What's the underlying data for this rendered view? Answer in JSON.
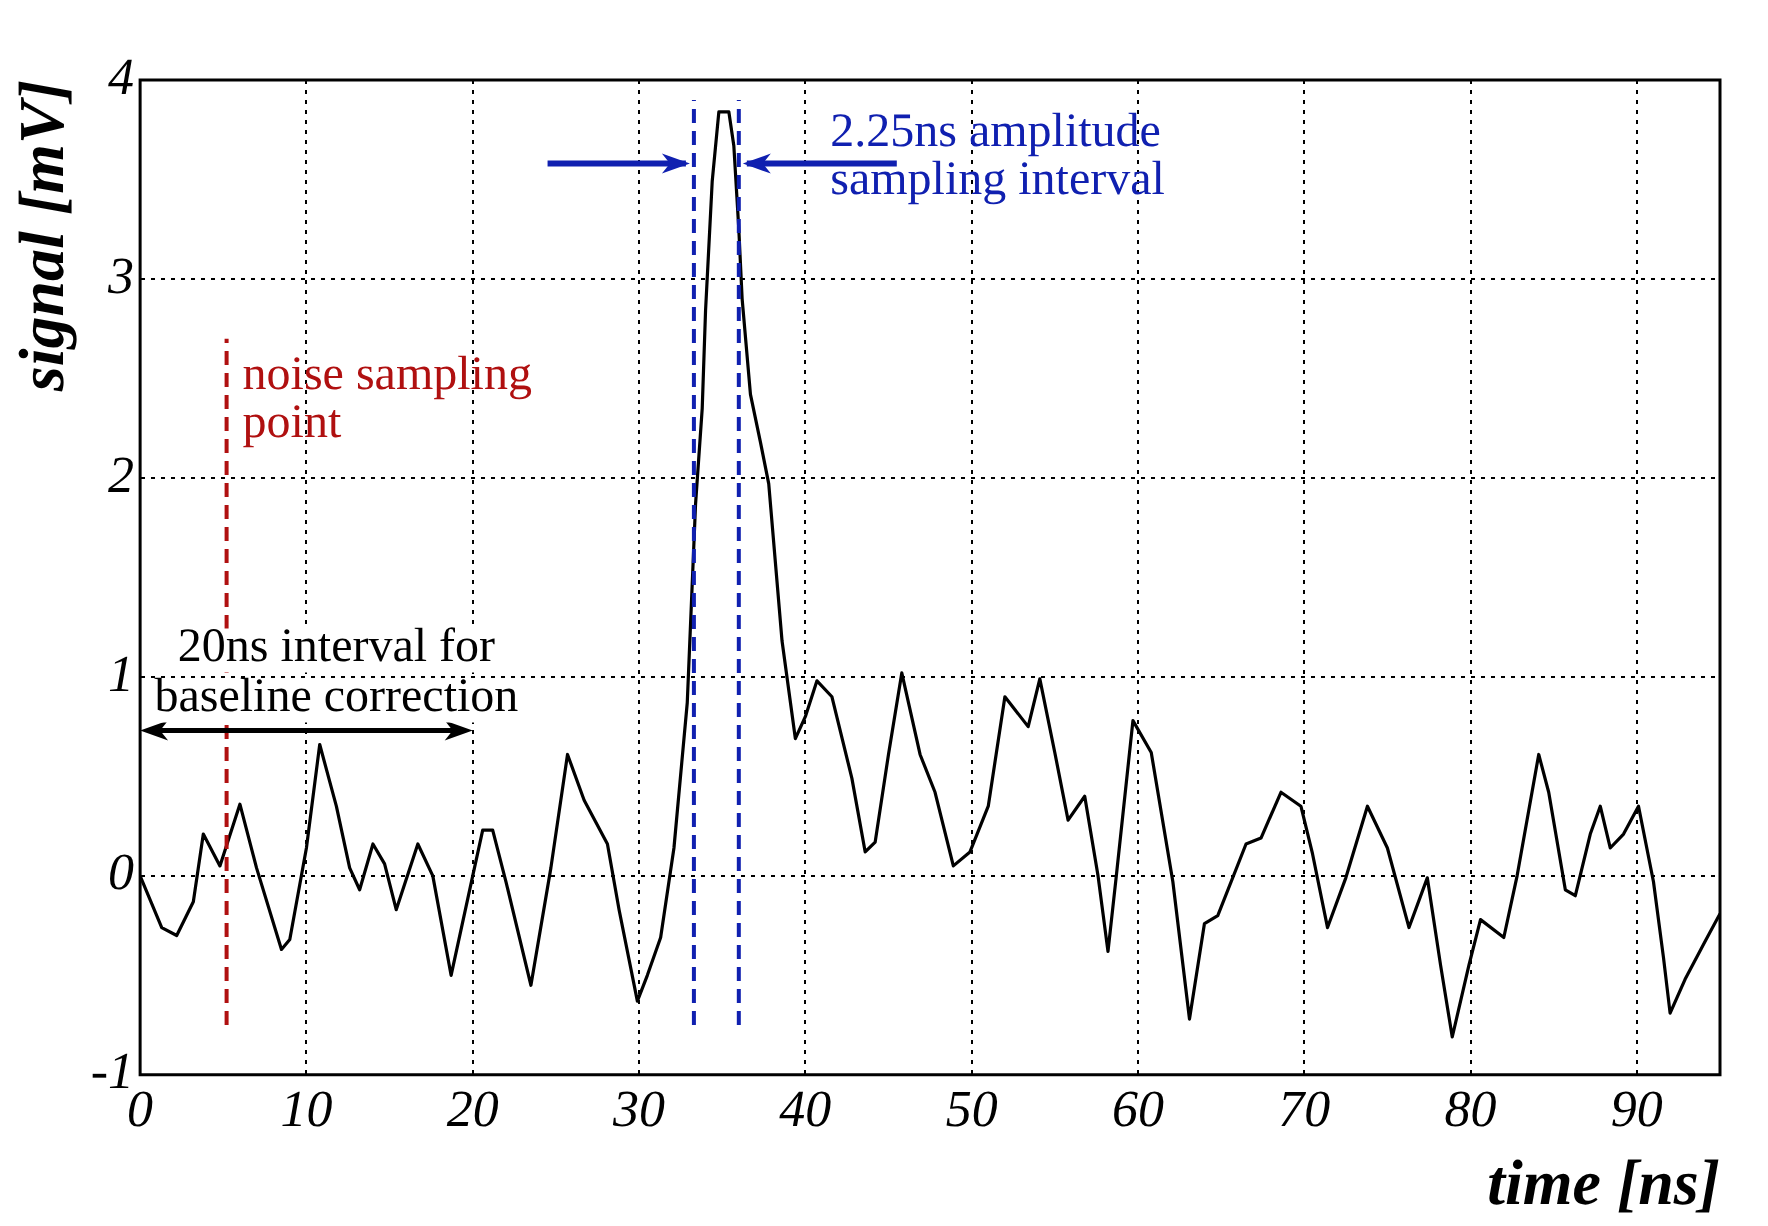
{
  "chart_data": {
    "type": "line",
    "xlabel": "time [ns]",
    "ylabel": "signal [mV]",
    "xlim": [
      0,
      95
    ],
    "xticks": [
      0,
      10,
      20,
      30,
      40,
      50,
      60,
      70,
      80,
      90
    ],
    "ylim": [
      -1,
      4
    ],
    "yticks": [
      -1,
      0,
      1,
      2,
      3,
      4
    ],
    "grid": true,
    "legend": false,
    "marker": "none",
    "line_style": "solid",
    "series": [
      {
        "color": "#000000",
        "x": [
          0,
          1.3,
          2.2,
          3.2,
          3.8,
          4.8,
          6.0,
          7.0,
          8.5,
          9.0,
          10.0,
          10.8,
          11.8,
          12.6,
          13.2,
          14.0,
          14.7,
          15.4,
          16.7,
          17.6,
          18.7,
          20.0,
          20.6,
          21.2,
          22.0,
          23.5,
          24.7,
          25.7,
          26.7,
          28.1,
          28.8,
          29.9,
          30.5,
          31.3,
          32.1,
          32.9,
          33.4,
          33.8,
          34.0,
          34.4,
          34.8,
          35.4,
          35.7,
          36.0,
          36.2,
          36.7,
          37.3,
          37.8,
          38.6,
          39.4,
          40.0,
          40.7,
          41.6,
          42.8,
          43.6,
          44.2,
          45.0,
          45.8,
          46.9,
          47.8,
          48.9,
          49.9,
          51.0,
          52.0,
          53.4,
          54.1,
          55.0,
          55.8,
          56.8,
          57.6,
          58.2,
          58.7,
          59.7,
          60.8,
          62.1,
          63.1,
          64.0,
          64.8,
          66.5,
          67.4,
          68.6,
          69.8,
          70.5,
          71.4,
          72.5,
          73.8,
          75.0,
          76.3,
          77.4,
          78.2,
          78.9,
          79.9,
          80.6,
          82.0,
          82.8,
          84.1,
          84.7,
          85.7,
          86.3,
          87.2,
          87.8,
          88.4,
          89.2,
          90.1,
          91.0,
          91.6,
          92.0,
          92.9,
          94.1,
          95.0
        ],
        "values": [
          0,
          -0.26,
          -0.3,
          -0.13,
          0.21,
          0.05,
          0.36,
          0.04,
          -0.37,
          -0.32,
          0.14,
          0.66,
          0.35,
          0.04,
          -0.07,
          0.16,
          0.06,
          -0.17,
          0.16,
          0.0,
          -0.5,
          0.0,
          0.23,
          0.23,
          -0.03,
          -0.55,
          0.04,
          0.61,
          0.38,
          0.16,
          -0.17,
          -0.63,
          -0.5,
          -0.31,
          0.14,
          0.87,
          1.87,
          2.35,
          2.84,
          3.49,
          3.84,
          3.84,
          3.67,
          3.25,
          2.9,
          2.42,
          2.18,
          1.97,
          1.18,
          0.69,
          0.8,
          0.98,
          0.9,
          0.49,
          0.12,
          0.17,
          0.61,
          1.02,
          0.61,
          0.42,
          0.05,
          0.12,
          0.35,
          0.9,
          0.75,
          0.99,
          0.62,
          0.28,
          0.4,
          0.0,
          -0.38,
          0.0,
          0.78,
          0.62,
          -0.03,
          -0.72,
          -0.24,
          -0.2,
          0.16,
          0.19,
          0.42,
          0.35,
          0.11,
          -0.26,
          -0.01,
          0.35,
          0.14,
          -0.26,
          -0.01,
          -0.45,
          -0.81,
          -0.45,
          -0.22,
          -0.31,
          0.0,
          0.61,
          0.42,
          -0.07,
          -0.1,
          0.21,
          0.35,
          0.14,
          0.21,
          0.35,
          -0.03,
          -0.41,
          -0.69,
          -0.52,
          -0.33,
          -0.19
        ]
      }
    ],
    "ref_lines": [
      {
        "axis": "x",
        "value": 5.2,
        "label": "noise sampling point",
        "color": "#b01010",
        "line_style": "dashed"
      },
      {
        "axis": "x",
        "value": 33.3,
        "label": "2.25ns amplitude sampling interval",
        "color": "#1020b0",
        "line_style": "dashed"
      },
      {
        "axis": "x",
        "value": 36.0,
        "color": "#1020b0",
        "line_style": "dashed"
      }
    ],
    "annotations": [
      "20ns interval for baseline correction"
    ]
  }
}
